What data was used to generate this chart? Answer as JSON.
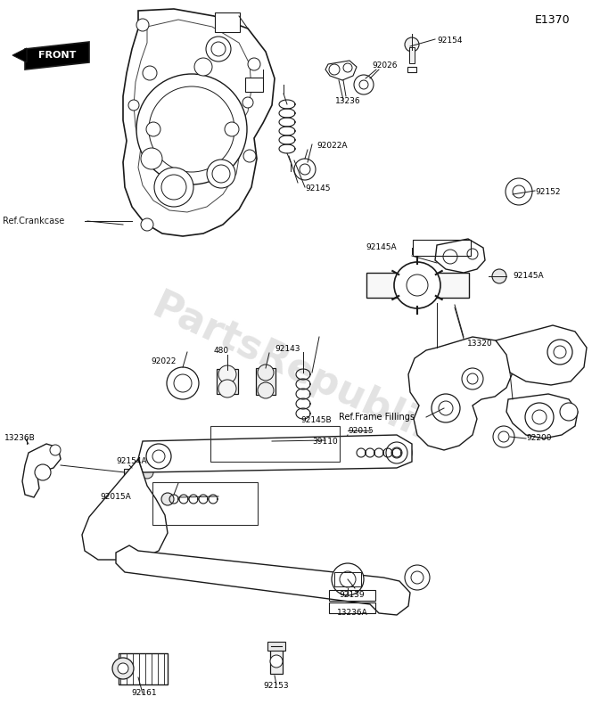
{
  "bg_color": "#ffffff",
  "line_color": "#1a1a1a",
  "watermark_text": "PartsRepublik",
  "watermark_color": "#cccccc",
  "e_code": "E1370",
  "front_label": "FRONT",
  "ref_crankcase": "Ref.Crankcase",
  "ref_frame": "Ref.Frame Fillings",
  "figsize": [
    6.64,
    8.0
  ],
  "dpi": 100
}
